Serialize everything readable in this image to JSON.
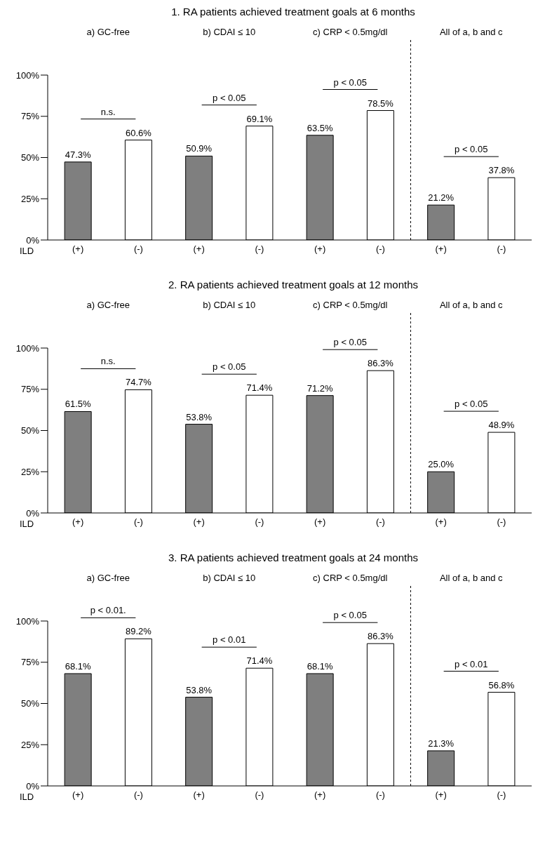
{
  "chart_data": [
    {
      "type": "bar",
      "title": "1.  RA patients achieved treatment goals at 6 months",
      "xlabel": "ILD",
      "categories": [
        "(+)",
        "(-)",
        "(+)",
        "(-)",
        "(+)",
        "(-)",
        "(+)",
        "(-)"
      ],
      "values": [
        47.3,
        60.6,
        50.9,
        69.1,
        63.5,
        78.5,
        21.2,
        37.8
      ],
      "value_labels": [
        "47.3%",
        "60.6%",
        "50.9%",
        "69.1%",
        "63.5%",
        "78.5%",
        "21.2%",
        "37.8%"
      ],
      "colors": [
        "#7f7f7f",
        "#ffffff",
        "#7f7f7f",
        "#ffffff",
        "#7f7f7f",
        "#ffffff",
        "#7f7f7f",
        "#ffffff"
      ],
      "ylim": [
        0,
        100
      ],
      "yticks": [
        {
          "value": 0,
          "label": "0%"
        },
        {
          "value": 25,
          "label": "25%"
        },
        {
          "value": 50,
          "label": "50%"
        },
        {
          "value": 75,
          "label": "75%"
        },
        {
          "value": 100,
          "label": "100%"
        }
      ],
      "annotations": [
        "a) GC-free",
        "b) CDAI ≤ 10",
        "c) CRP < 0.5mg/dl",
        "All of a, b and c",
        "n.s.",
        "p < 0.05",
        "p < 0.05",
        "p < 0.05"
      ]
    },
    {
      "type": "bar",
      "title": "2. RA patients achieved treatment goals at 12 months",
      "xlabel": "ILD",
      "categories": [
        "(+)",
        "(-)",
        "(+)",
        "(-)",
        "(+)",
        "(-)",
        "(+)",
        "(-)"
      ],
      "values": [
        61.5,
        74.7,
        53.8,
        71.4,
        71.2,
        86.3,
        25.0,
        48.9
      ],
      "value_labels": [
        "61.5%",
        "74.7%",
        "53.8%",
        "71.4%",
        "71.2%",
        "86.3%",
        "25.0%",
        "48.9%"
      ],
      "colors": [
        "#7f7f7f",
        "#ffffff",
        "#7f7f7f",
        "#ffffff",
        "#7f7f7f",
        "#ffffff",
        "#7f7f7f",
        "#ffffff"
      ],
      "ylim": [
        0,
        100
      ],
      "yticks": [
        {
          "value": 0,
          "label": "0%"
        },
        {
          "value": 25,
          "label": "25%"
        },
        {
          "value": 50,
          "label": "50%"
        },
        {
          "value": 75,
          "label": "75%"
        },
        {
          "value": 100,
          "label": "100%"
        }
      ],
      "annotations": [
        "a) GC-free",
        "b) CDAI ≤ 10",
        "c) CRP < 0.5mg/dl",
        "All of a, b and c",
        "n.s.",
        "p < 0.05",
        "p < 0.05",
        "p < 0.05"
      ]
    },
    {
      "type": "bar",
      "title": "3. RA patients achieved treatment goals at 24 months",
      "xlabel": "ILD",
      "categories": [
        "(+)",
        "(-)",
        "(+)",
        "(-)",
        "(+)",
        "(-)",
        "(+)",
        "(-)"
      ],
      "values": [
        68.1,
        89.2,
        53.8,
        71.4,
        68.1,
        86.3,
        21.3,
        56.8
      ],
      "value_labels": [
        "68.1%",
        "89.2%",
        "53.8%",
        "71.4%",
        "68.1%",
        "86.3%",
        "21.3%",
        "56.8%"
      ],
      "colors": [
        "#7f7f7f",
        "#ffffff",
        "#7f7f7f",
        "#ffffff",
        "#7f7f7f",
        "#ffffff",
        "#7f7f7f",
        "#ffffff"
      ],
      "ylim": [
        0,
        100
      ],
      "yticks": [
        {
          "value": 0,
          "label": "0%"
        },
        {
          "value": 25,
          "label": "25%"
        },
        {
          "value": 50,
          "label": "50%"
        },
        {
          "value": 75,
          "label": "75%"
        },
        {
          "value": 100,
          "label": "100%"
        }
      ],
      "annotations": [
        "a) GC-free",
        "b) CDAI ≤ 10",
        "c) CRP < 0.5mg/dl",
        "All of a, b and c",
        "p < 0.01.",
        "p < 0.01",
        "p < 0.05",
        "p < 0.01"
      ]
    }
  ]
}
